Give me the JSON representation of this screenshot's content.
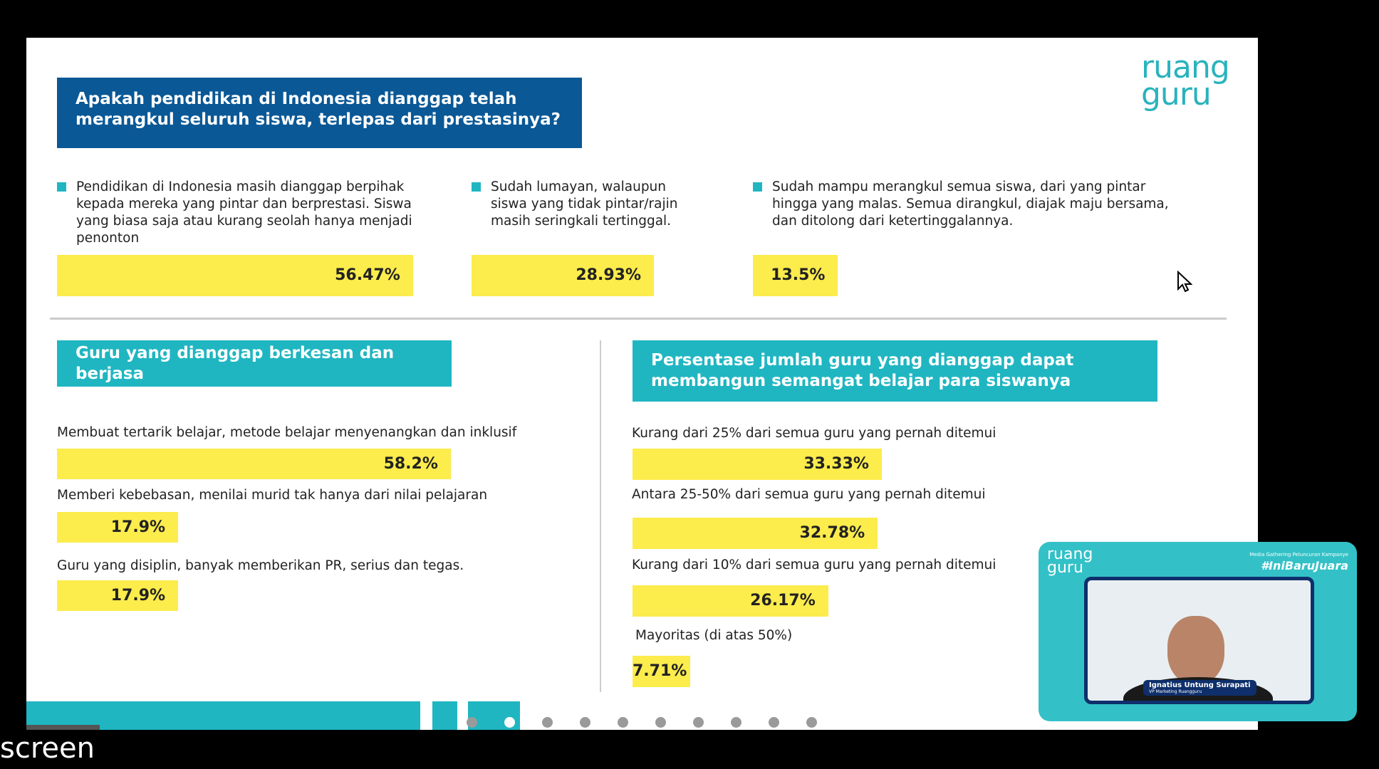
{
  "logo": {
    "line1": "ruang",
    "line2": "guru"
  },
  "question": {
    "title": "Apakah pendidikan di Indonesia dianggap telah merangkul seluruh siswa, terlepas dari prestasinya?",
    "options": [
      {
        "text": "Pendidikan di Indonesia masih dianggap berpihak kepada mereka yang pintar dan berprestasi. Siswa yang biasa saja atau kurang seolah hanya menjadi penonton",
        "value": 56.47,
        "value_label": "56.47%"
      },
      {
        "text": "Sudah lumayan, walaupun siswa yang tidak pintar/rajin masih seringkali tertinggal.",
        "value": 28.93,
        "value_label": "28.93%"
      },
      {
        "text": "Sudah mampu merangkul semua siswa, dari yang pintar hingga yang malas. Semua dirangkul, diajak maju bersama, dan ditolong dari ketertinggalannya.",
        "value": 13.5,
        "value_label": "13.5%"
      }
    ]
  },
  "memorable": {
    "title": "Guru yang dianggap berkesan dan berjasa",
    "items": [
      {
        "label": "Membuat tertarik belajar, metode belajar menyenangkan dan inklusif",
        "value": 58.2,
        "value_label": "58.2%"
      },
      {
        "label": "Memberi kebebasan, menilai murid tak hanya dari nilai pelajaran",
        "value": 17.9,
        "value_label": "17.9%"
      },
      {
        "label": "Guru yang disiplin, banyak memberikan  PR, serius dan tegas.",
        "value": 17.9,
        "value_label": "17.9%"
      }
    ]
  },
  "motivating": {
    "title": "Persentase jumlah guru yang dianggap dapat membangun semangat belajar para siswanya",
    "items": [
      {
        "label": "Kurang dari 25% dari semua guru yang pernah ditemui",
        "value": 33.33,
        "value_label": "33.33%"
      },
      {
        "label": "Antara 25-50% dari semua guru yang pernah ditemui",
        "value": 32.78,
        "value_label": "32.78%"
      },
      {
        "label": "Kurang dari 10% dari semua guru yang pernah ditemui",
        "value": 26.17,
        "value_label": "26.17%"
      },
      {
        "label": "Mayoritas (di atas 50%)",
        "value": 7.71,
        "value_label": "7.71%"
      }
    ]
  },
  "video": {
    "logo": "ruang guru",
    "event": "Media Gathering Peluncuran Kampanye",
    "hashtag": "#IniBaruJuara",
    "speaker": "Ignatius Untung Surapati",
    "role": "VP Marketing Ruangguru"
  },
  "share_label": "screen"
}
